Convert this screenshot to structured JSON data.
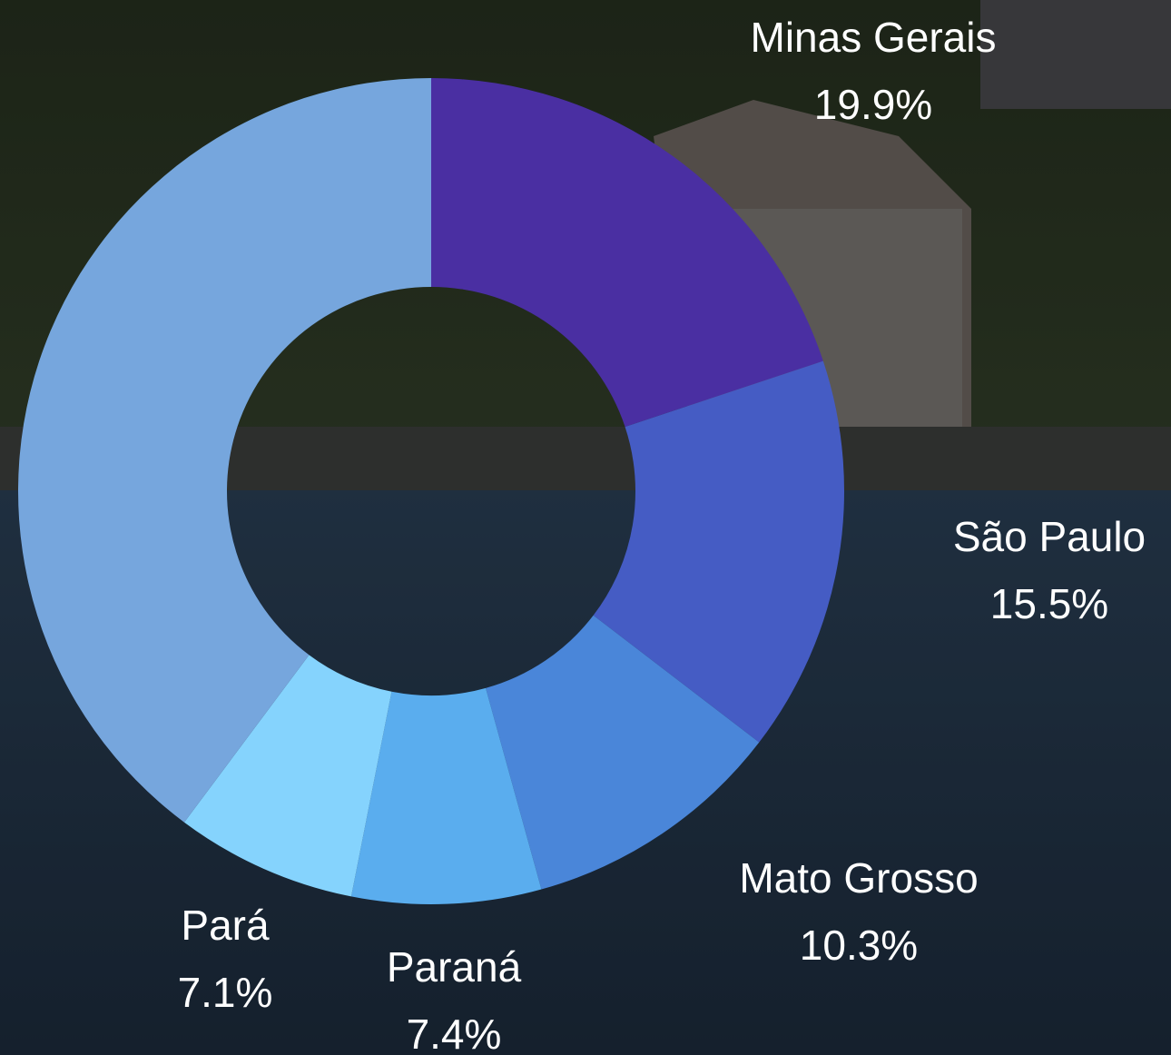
{
  "chart_data": {
    "type": "pie",
    "categories": [
      "Minas Gerais",
      "São Paulo",
      "Mato Grosso",
      "Paraná",
      "Pará",
      null
    ],
    "values": [
      19.9,
      15.5,
      10.3,
      7.4,
      7.1,
      39.8
    ],
    "value_labels": [
      "19.9%",
      "15.5%",
      "10.3%",
      "7.4%",
      "7.1%",
      null
    ],
    "colors": [
      "#4a2fa2",
      "#455cc4",
      "#4a86d9",
      "#5aadee",
      "#85d3fd",
      "#76a6dd"
    ],
    "hole": true
  }
}
